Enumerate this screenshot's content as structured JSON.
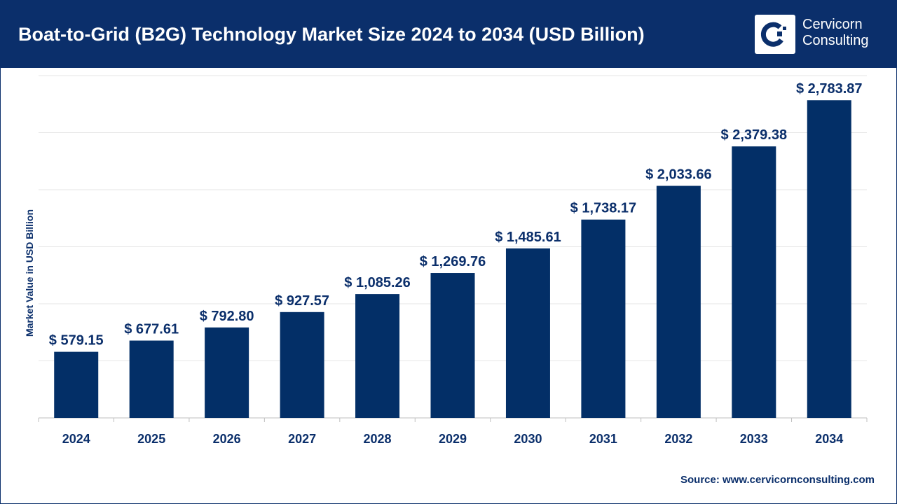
{
  "header": {
    "title": "Boat-to-Grid (B2G) Technology Market Size 2024 to 2034 (USD Billion)",
    "logo_text_line1": "Cervicorn",
    "logo_text_line2": "Consulting"
  },
  "source": "Source: www.cervicornconsulting.com",
  "colors": {
    "header": "#0b2f6b",
    "bar": "#032f67",
    "label": "#0b2f6b"
  },
  "chart_data": {
    "type": "bar",
    "title": "Boat-to-Grid (B2G) Technology Market Size 2024 to 2034 (USD Billion)",
    "xlabel": "",
    "ylabel": "Market Value in USD Billion",
    "ylim": [
      0,
      3000
    ],
    "grid": true,
    "categories": [
      "2024",
      "2025",
      "2026",
      "2027",
      "2028",
      "2029",
      "2030",
      "2031",
      "2032",
      "2033",
      "2034"
    ],
    "values": [
      579.15,
      677.61,
      792.8,
      927.57,
      1085.26,
      1269.76,
      1485.61,
      1738.17,
      2033.66,
      2379.38,
      2783.87
    ],
    "data_labels": [
      "$ 579.15",
      "$ 677.61",
      "$ 792.80",
      "$ 927.57",
      "$ 1,085.26",
      "$ 1,269.76",
      "$ 1,485.61",
      "$ 1,738.17",
      "$ 2,033.66",
      "$ 2,379.38",
      "$ 2,783.87"
    ]
  }
}
